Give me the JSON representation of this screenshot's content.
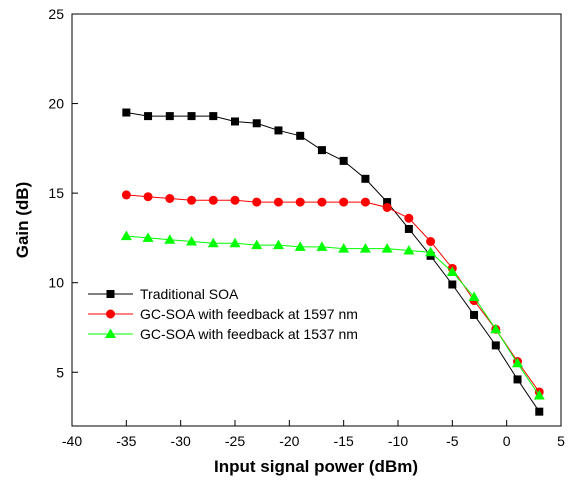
{
  "chart_data": {
    "type": "line",
    "xlabel": "Input signal power (dBm)",
    "ylabel": "Gain (dB)",
    "xlim": [
      -40,
      5
    ],
    "ylim": [
      2,
      25
    ],
    "xticks": [
      -40,
      -35,
      -30,
      -25,
      -20,
      -15,
      -10,
      -5,
      0,
      5
    ],
    "yticks": [
      5,
      10,
      15,
      20,
      25
    ],
    "grid": false,
    "legend_position": "bottom-left",
    "series": [
      {
        "name": "Traditional SOA",
        "color": "#000000",
        "marker": "square",
        "x": [
          -35,
          -33,
          -31,
          -29,
          -27,
          -25,
          -23,
          -21,
          -19,
          -17,
          -15,
          -13,
          -11,
          -9,
          -7,
          -5,
          -3,
          -1,
          1,
          3
        ],
        "y": [
          19.5,
          19.3,
          19.3,
          19.3,
          19.3,
          19.0,
          18.9,
          18.5,
          18.2,
          17.4,
          16.8,
          15.8,
          14.5,
          13.0,
          11.5,
          9.9,
          8.2,
          6.5,
          4.6,
          2.8
        ]
      },
      {
        "name": "GC-SOA with feedback at 1597 nm",
        "color": "#ff0000",
        "marker": "circle",
        "x": [
          -35,
          -33,
          -31,
          -29,
          -27,
          -25,
          -23,
          -21,
          -19,
          -17,
          -15,
          -13,
          -11,
          -9,
          -7,
          -5,
          -3,
          -1,
          1,
          3
        ],
        "y": [
          14.9,
          14.8,
          14.7,
          14.6,
          14.6,
          14.6,
          14.5,
          14.5,
          14.5,
          14.5,
          14.5,
          14.5,
          14.2,
          13.6,
          12.3,
          10.8,
          9.0,
          7.4,
          5.6,
          3.9
        ]
      },
      {
        "name": "GC-SOA with feedback at 1537 nm",
        "color": "#00ff00",
        "marker": "triangle",
        "x": [
          -35,
          -33,
          -31,
          -29,
          -27,
          -25,
          -23,
          -21,
          -19,
          -17,
          -15,
          -13,
          -11,
          -9,
          -7,
          -5,
          -3,
          -1,
          1,
          3
        ],
        "y": [
          12.6,
          12.5,
          12.4,
          12.3,
          12.2,
          12.2,
          12.1,
          12.1,
          12.0,
          12.0,
          11.9,
          11.9,
          11.9,
          11.8,
          11.7,
          10.6,
          9.2,
          7.4,
          5.5,
          3.7
        ]
      }
    ]
  }
}
